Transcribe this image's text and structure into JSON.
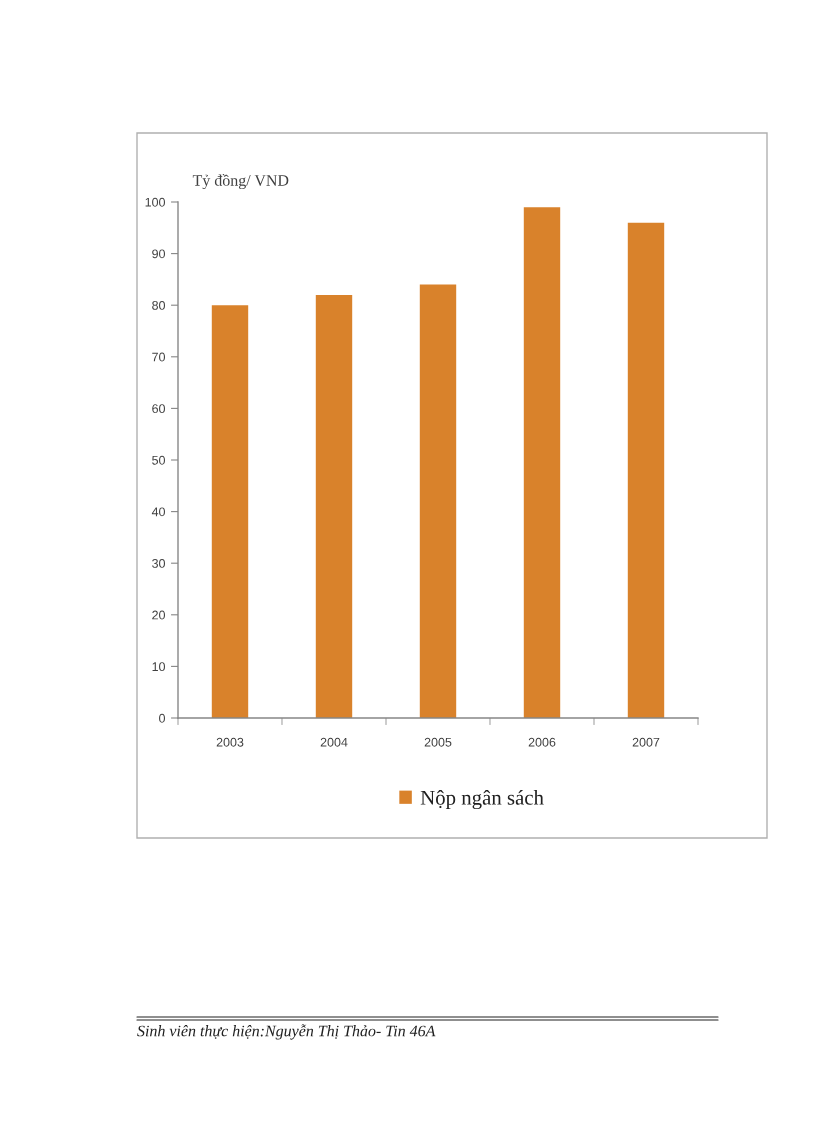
{
  "chart_data": {
    "type": "bar",
    "ylabel": "Tỷ đồng/ VND",
    "categories": [
      "2003",
      "2004",
      "2005",
      "2006",
      "2007"
    ],
    "series": [
      {
        "name": "Nộp ngân sách",
        "color": "#d9822b",
        "values": [
          80,
          82,
          84,
          99,
          96
        ]
      }
    ],
    "ylim": [
      0,
      100
    ],
    "yticks": [
      0,
      10,
      20,
      30,
      40,
      50,
      60,
      70,
      80,
      90,
      100
    ],
    "grid": false,
    "legend": "bottom",
    "annotations": [
      "Sinh viên thực hiện:Nguyễn Thị Thảo- Tin 46A"
    ]
  }
}
